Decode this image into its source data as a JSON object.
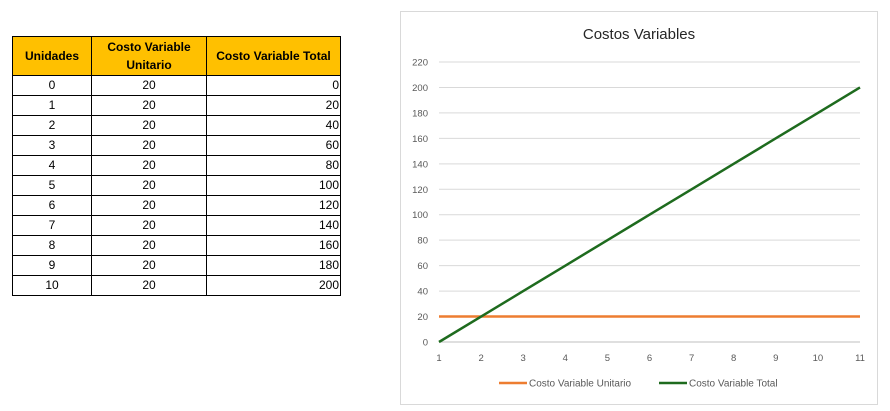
{
  "table": {
    "headers": [
      "Unidades",
      "Costo Variable Unitario",
      "Costo Variable Total"
    ],
    "rows": [
      [
        "0",
        "20",
        "0"
      ],
      [
        "1",
        "20",
        "20"
      ],
      [
        "2",
        "20",
        "40"
      ],
      [
        "3",
        "20",
        "60"
      ],
      [
        "4",
        "20",
        "80"
      ],
      [
        "5",
        "20",
        "100"
      ],
      [
        "6",
        "20",
        "120"
      ],
      [
        "7",
        "20",
        "140"
      ],
      [
        "8",
        "20",
        "160"
      ],
      [
        "9",
        "20",
        "180"
      ],
      [
        "10",
        "20",
        "200"
      ]
    ]
  },
  "chart_data": {
    "type": "line",
    "title": "Costos Variables",
    "xlabel": "",
    "ylabel": "",
    "categories": [
      "1",
      "2",
      "3",
      "4",
      "5",
      "6",
      "7",
      "8",
      "9",
      "10",
      "11"
    ],
    "ylim": [
      0,
      220
    ],
    "yticks": [
      0,
      20,
      40,
      60,
      80,
      100,
      120,
      140,
      160,
      180,
      200,
      220
    ],
    "grid": true,
    "legend_position": "bottom",
    "series": [
      {
        "name": "Costo Variable Unitario",
        "color": "#ed7d31",
        "values": [
          20,
          20,
          20,
          20,
          20,
          20,
          20,
          20,
          20,
          20,
          20
        ]
      },
      {
        "name": "Costo Variable Total",
        "color": "#1e6b1e",
        "values": [
          0,
          20,
          40,
          60,
          80,
          100,
          120,
          140,
          160,
          180,
          200
        ]
      }
    ]
  }
}
